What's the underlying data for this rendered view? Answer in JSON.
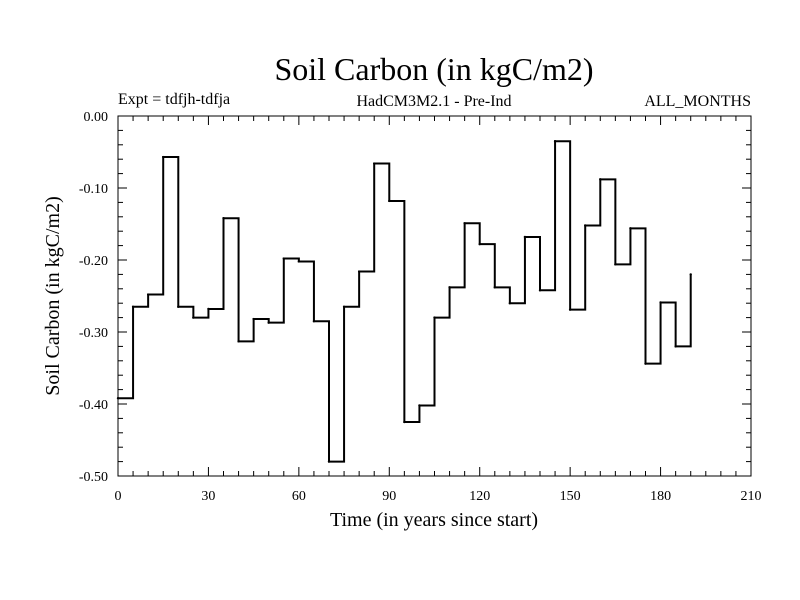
{
  "chart_data": {
    "type": "line",
    "step": true,
    "title": "Soil Carbon (in kgC/m2)",
    "subtitle_left": "Expt = tdfjh-tdfja",
    "subtitle_center": "HadCM3M2.1 - Pre-Ind",
    "subtitle_right": "ALL_MONTHS",
    "xlabel": "Time (in years since start)",
    "ylabel": "Soil Carbon (in kgC/m2)",
    "xlim": [
      0,
      210
    ],
    "ylim": [
      -0.5,
      0.0
    ],
    "xticks": [
      0,
      30,
      60,
      90,
      120,
      150,
      180,
      210
    ],
    "xtick_labels": [
      "0",
      "30",
      "60",
      "90",
      "120",
      "150",
      "180",
      "210"
    ],
    "yticks": [
      0.0,
      -0.1,
      -0.2,
      -0.3,
      -0.4,
      -0.5
    ],
    "ytick_labels": [
      "0.00",
      "-0.10",
      "-0.20",
      "-0.30",
      "-0.40",
      "-0.50"
    ],
    "series": [
      {
        "name": "Soil Carbon",
        "color": "#000000",
        "x": [
          0,
          5,
          10,
          15,
          20,
          25,
          30,
          35,
          40,
          45,
          50,
          55,
          60,
          65,
          70,
          75,
          80,
          85,
          90,
          95,
          100,
          105,
          110,
          115,
          120,
          125,
          130,
          135,
          140,
          145,
          150,
          155,
          160,
          165,
          170,
          175,
          180,
          185,
          190
        ],
        "y": [
          -0.392,
          -0.265,
          -0.248,
          -0.057,
          -0.265,
          -0.28,
          -0.268,
          -0.142,
          -0.313,
          -0.282,
          -0.287,
          -0.198,
          -0.202,
          -0.285,
          -0.48,
          -0.265,
          -0.216,
          -0.066,
          -0.118,
          -0.425,
          -0.402,
          -0.28,
          -0.238,
          -0.149,
          -0.178,
          -0.238,
          -0.26,
          -0.168,
          -0.242,
          -0.035,
          -0.269,
          -0.152,
          -0.088,
          -0.206,
          -0.156,
          -0.344,
          -0.259,
          -0.32,
          -0.22
        ]
      }
    ]
  }
}
